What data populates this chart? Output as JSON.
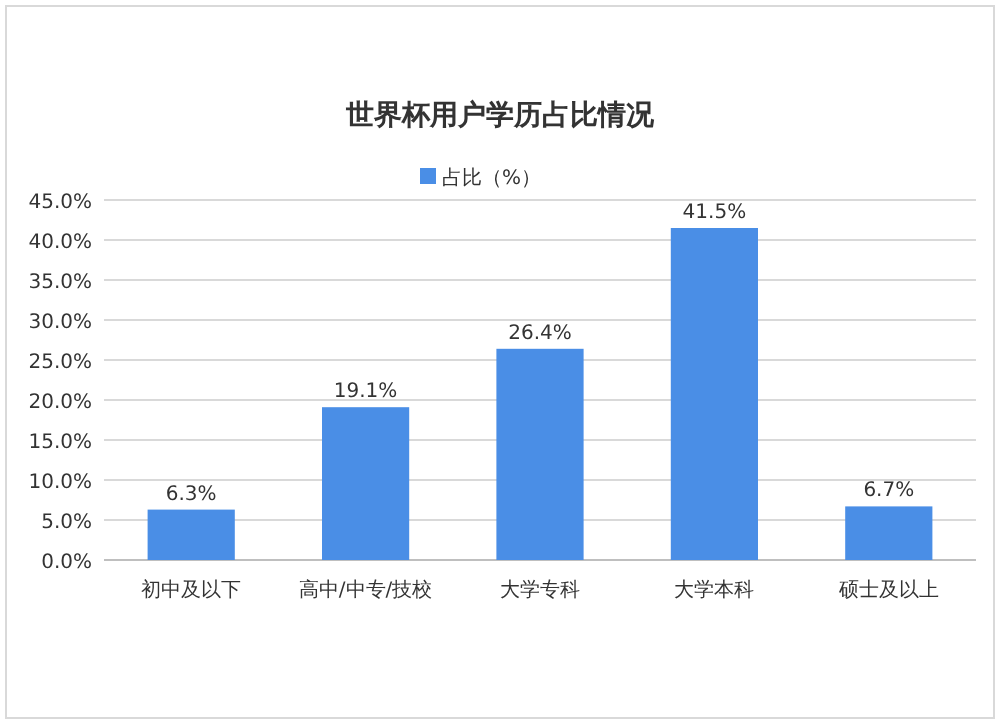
{
  "chart_data": {
    "type": "bar",
    "title": "世界杯用户学历占比情况",
    "categories": [
      "初中及以下",
      "高中/中专/技校",
      "大学专科",
      "大学本科",
      "硕士及以上"
    ],
    "series": [
      {
        "name": "占比（%）",
        "color": "#4a8ee6",
        "values": [
          6.3,
          19.1,
          26.4,
          41.5,
          6.7
        ],
        "value_labels": [
          "6.3%",
          "19.1%",
          "26.4%",
          "41.5%",
          "6.7%"
        ]
      }
    ],
    "ylim": [
      0,
      45
    ],
    "yticks": [
      {
        "value": 0,
        "label": "0.0%"
      },
      {
        "value": 5,
        "label": "5.0%"
      },
      {
        "value": 10,
        "label": "10.0%"
      },
      {
        "value": 15,
        "label": "15.0%"
      },
      {
        "value": 20,
        "label": "20.0%"
      },
      {
        "value": 25,
        "label": "25.0%"
      },
      {
        "value": 30,
        "label": "30.0%"
      },
      {
        "value": 35,
        "label": "35.0%"
      },
      {
        "value": 40,
        "label": "40.0%"
      },
      {
        "value": 45,
        "label": "45.0%"
      }
    ],
    "grid": "y",
    "legend": "top"
  }
}
